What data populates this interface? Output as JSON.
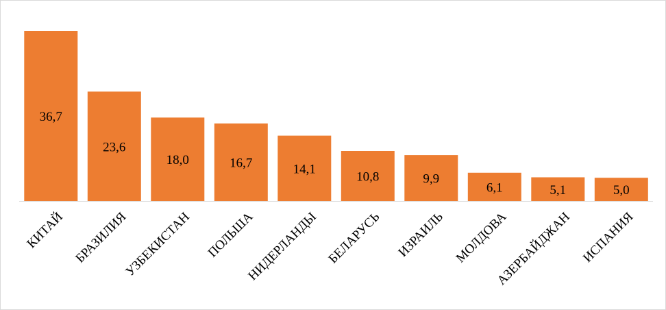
{
  "chart_data": {
    "type": "bar",
    "categories": [
      "КИТАЙ",
      "БРАЗИЛИЯ",
      "УЗБЕКИСТАН",
      "ПОЛЬША",
      "НИДЕРЛАНДЫ",
      "БЕЛАРУСЬ",
      "ИЗРАИЛЬ",
      "МОЛДОВА",
      "АЗЕРБАЙДЖАН",
      "ИСПАНИЯ"
    ],
    "values": [
      36.7,
      23.6,
      18.0,
      16.7,
      14.1,
      10.8,
      9.9,
      6.1,
      5.1,
      5.0
    ],
    "data_labels": [
      "36,7",
      "23,6",
      "18,0",
      "16,7",
      "14,1",
      "10,8",
      "9,9",
      "6,1",
      "5,1",
      "5,0"
    ],
    "title": "",
    "xlabel": "",
    "ylabel": "",
    "ylim": [
      0,
      36.7
    ],
    "grid": false,
    "legend": "none",
    "bar_color": "#ED7D31",
    "axis_color": "#D9D9D9"
  }
}
